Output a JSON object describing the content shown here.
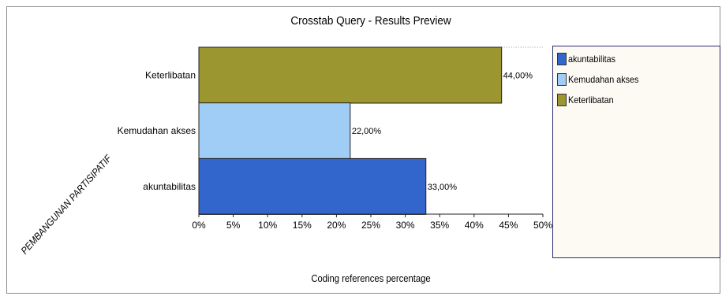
{
  "chart_data": {
    "type": "bar",
    "orientation": "horizontal",
    "title": "Crosstab Query - Results Preview",
    "xlabel": "Coding references percentage",
    "ylabel": "PEMBANGUNAN PARTISIPATIF",
    "categories": [
      "Keterlibatan",
      "Kemudahan akses",
      "akuntabilitas"
    ],
    "values": [
      44,
      22,
      33
    ],
    "value_labels": [
      "44,00%",
      "22,00%",
      "33,00%"
    ],
    "colors": [
      "#9b9630",
      "#9fcdf5",
      "#3366cc"
    ],
    "xlim": [
      0,
      50
    ],
    "x_ticks": [
      0,
      5,
      10,
      15,
      20,
      25,
      30,
      35,
      40,
      45,
      50
    ],
    "x_tick_labels": [
      "0%",
      "5%",
      "10%",
      "15%",
      "20%",
      "25%",
      "30%",
      "35%",
      "40%",
      "45%",
      "50%"
    ],
    "grid": false,
    "legend_position": "right",
    "legend": [
      {
        "label": "akuntabilitas",
        "color": "#3366cc"
      },
      {
        "label": "Kemudahan akses",
        "color": "#9fcdf5"
      },
      {
        "label": "Keterlibatan",
        "color": "#9b9630"
      }
    ]
  }
}
